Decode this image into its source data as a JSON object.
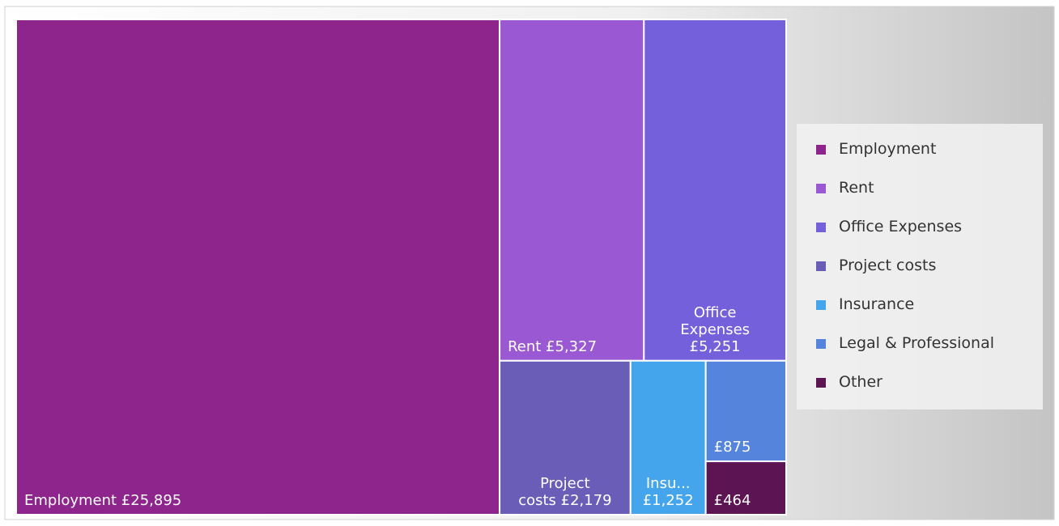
{
  "chart_data": {
    "type": "treemap",
    "categories": [
      "Employment",
      "Rent",
      "Office Expenses",
      "Project costs",
      "Insurance",
      "Legal & Professional",
      "Other"
    ],
    "values": [
      25895,
      5327,
      5251,
      2179,
      1252,
      875,
      464
    ],
    "value_labels": [
      "Employment £25,895",
      "Rent £5,327",
      "Office Expenses £5,251",
      "Project costs £2,179",
      "Insu... £1,252",
      "£875",
      "£464"
    ],
    "colors": [
      "#8e258c",
      "#9a58d2",
      "#7560dc",
      "#6a5db8",
      "#44a5ec",
      "#5584dc",
      "#5c1452"
    ],
    "legend": "right"
  }
}
